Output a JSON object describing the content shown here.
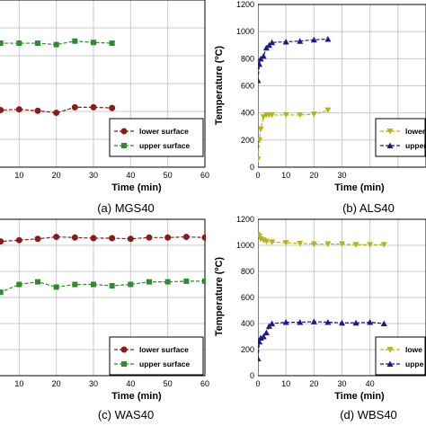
{
  "chart_data": [
    {
      "type": "line",
      "caption": "(a) MGS40",
      "xlabel": "Time (min)",
      "ylabel": "",
      "xlim": [
        0,
        60
      ],
      "ylim": [
        0,
        1200
      ],
      "xticks": [
        10,
        20,
        30,
        40,
        50,
        60
      ],
      "yticks": [],
      "grid": true,
      "legend_placement": "bottom-right",
      "series": [
        {
          "name": "lower surface",
          "color": "#8b1a1a",
          "marker": "circle",
          "x": [
            0,
            1,
            2,
            5,
            10,
            15,
            20,
            25,
            30,
            35
          ],
          "y": [
            405,
            410,
            410,
            410,
            415,
            405,
            390,
            430,
            430,
            425
          ]
        },
        {
          "name": "upper surface",
          "color": "#2e8b2e",
          "marker": "square",
          "x": [
            0,
            1,
            2,
            5,
            10,
            15,
            20,
            25,
            30,
            35
          ],
          "y": [
            760,
            820,
            870,
            890,
            890,
            890,
            880,
            905,
            895,
            890
          ]
        }
      ]
    },
    {
      "type": "line",
      "caption": "(b) ALS40",
      "xlabel": "Time (min)",
      "ylabel": "Temperature (ºC)",
      "xlim": [
        0,
        60
      ],
      "ylim": [
        0,
        1200
      ],
      "xticks": [
        0,
        10,
        20,
        30
      ],
      "yticks": [
        0,
        200,
        400,
        600,
        800,
        1000,
        1200
      ],
      "grid": true,
      "legend_placement": "bottom-right",
      "series": [
        {
          "name": "lower",
          "color": "#b5b518",
          "marker": "triangle-down",
          "x": [
            0,
            0.5,
            1,
            2,
            3,
            4,
            5,
            10,
            15,
            20,
            25
          ],
          "y": [
            60,
            200,
            280,
            370,
            385,
            385,
            385,
            385,
            385,
            390,
            420
          ]
        },
        {
          "name": "upper",
          "color": "#1a1a8b",
          "marker": "triangle-up",
          "x": [
            0,
            0.5,
            1,
            2,
            3,
            4,
            5,
            10,
            15,
            20,
            25
          ],
          "y": [
            640,
            760,
            800,
            820,
            880,
            900,
            920,
            925,
            930,
            940,
            945
          ]
        }
      ]
    },
    {
      "type": "line",
      "caption": "(c) WAS40",
      "xlabel": "Time (min)",
      "ylabel": "",
      "xlim": [
        0,
        60
      ],
      "ylim": [
        0,
        1200
      ],
      "xticks": [
        10,
        20,
        30,
        40,
        50,
        60
      ],
      "yticks": [],
      "grid": true,
      "legend_placement": "bottom-right",
      "series": [
        {
          "name": "lower surface",
          "color": "#8b1a1a",
          "marker": "circle",
          "x": [
            0,
            1,
            2,
            5,
            10,
            15,
            20,
            25,
            30,
            35,
            40,
            45,
            50,
            55,
            60
          ],
          "y": [
            1010,
            1015,
            1015,
            1030,
            1040,
            1050,
            1065,
            1060,
            1055,
            1055,
            1050,
            1060,
            1060,
            1065,
            1060
          ]
        },
        {
          "name": "upper surface",
          "color": "#2e8b2e",
          "marker": "square",
          "x": [
            0,
            1,
            2,
            5,
            10,
            15,
            20,
            25,
            30,
            35,
            40,
            45,
            50,
            55,
            60
          ],
          "y": [
            540,
            560,
            570,
            640,
            700,
            720,
            680,
            700,
            700,
            690,
            700,
            720,
            720,
            725,
            725
          ]
        }
      ]
    },
    {
      "type": "line",
      "caption": "(d) WBS40",
      "xlabel": "Time (min)",
      "ylabel": "Temperature (ºC)",
      "xlim": [
        0,
        60
      ],
      "ylim": [
        0,
        1200
      ],
      "xticks": [
        0,
        10,
        20,
        30,
        40
      ],
      "yticks": [
        0,
        200,
        400,
        600,
        800,
        1000,
        1200
      ],
      "grid": true,
      "legend_placement": "bottom-right",
      "series": [
        {
          "name": "lowe",
          "color": "#b5b518",
          "marker": "triangle-down",
          "x": [
            0,
            0.5,
            1,
            2,
            3,
            5,
            10,
            15,
            20,
            25,
            30,
            35,
            40,
            45
          ],
          "y": [
            1080,
            1070,
            1050,
            1040,
            1030,
            1025,
            1020,
            1015,
            1010,
            1010,
            1010,
            1005,
            1005,
            1005
          ]
        },
        {
          "name": "uppe",
          "color": "#1a1a8b",
          "marker": "triangle-up",
          "x": [
            0,
            0.5,
            1,
            2,
            3,
            4,
            5,
            10,
            15,
            20,
            25,
            30,
            35,
            40,
            45
          ],
          "y": [
            130,
            260,
            290,
            300,
            330,
            380,
            400,
            410,
            410,
            415,
            410,
            405,
            405,
            410,
            400
          ]
        }
      ]
    }
  ]
}
